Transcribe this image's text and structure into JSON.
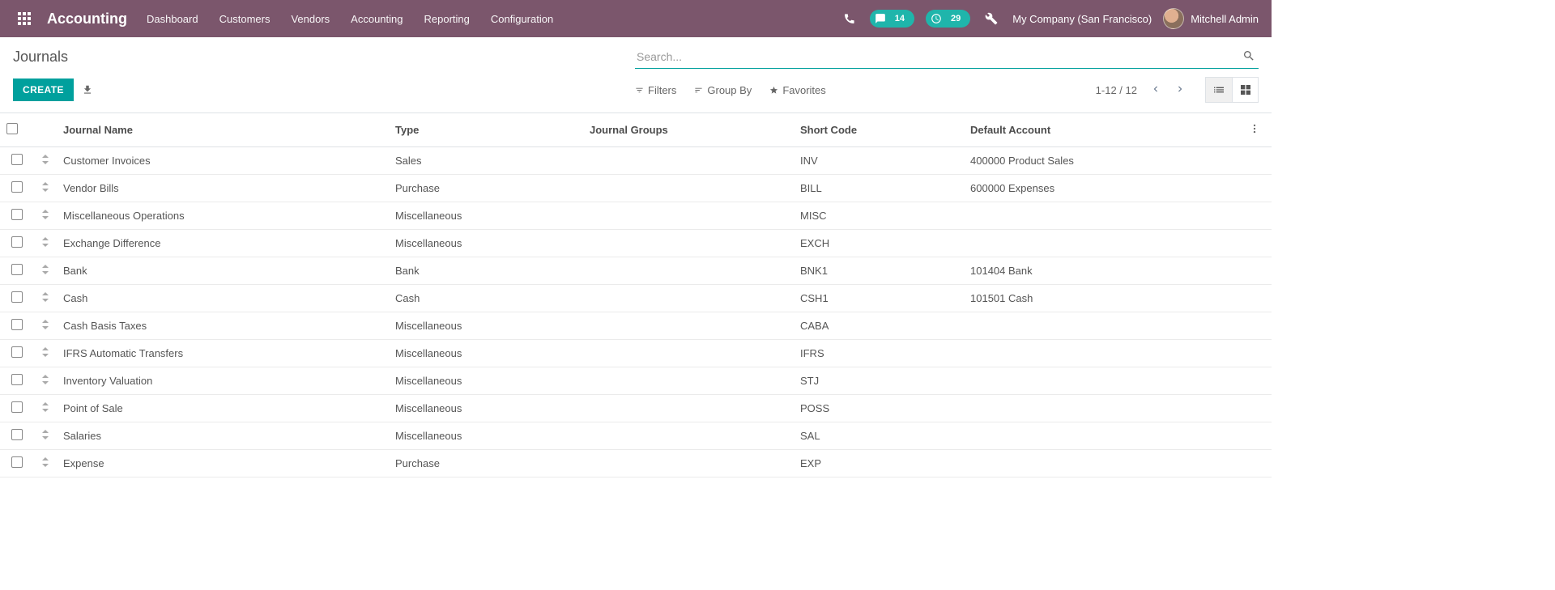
{
  "colors": {
    "brand": "#7b566c",
    "teal": "#00a09d",
    "teal_badge": "#1fb5ab",
    "text": "#4c4c4c",
    "border": "#dee2e6"
  },
  "navbar": {
    "app_name": "Accounting",
    "links": [
      "Dashboard",
      "Customers",
      "Vendors",
      "Accounting",
      "Reporting",
      "Configuration"
    ],
    "messages_count": "14",
    "activities_count": "29",
    "company": "My Company (San Francisco)",
    "user": "Mitchell Admin"
  },
  "header": {
    "title": "Journals",
    "search_placeholder": "Search...",
    "create_label": "Create"
  },
  "filters": {
    "filters_label": "Filters",
    "groupby_label": "Group By",
    "favorites_label": "Favorites"
  },
  "pager": {
    "range": "1-12 / 12"
  },
  "table": {
    "columns": {
      "name": "Journal Name",
      "type": "Type",
      "groups": "Journal Groups",
      "code": "Short Code",
      "default": "Default Account"
    },
    "rows": [
      {
        "name": "Customer Invoices",
        "type": "Sales",
        "groups": "",
        "code": "INV",
        "default": "400000 Product Sales"
      },
      {
        "name": "Vendor Bills",
        "type": "Purchase",
        "groups": "",
        "code": "BILL",
        "default": "600000 Expenses"
      },
      {
        "name": "Miscellaneous Operations",
        "type": "Miscellaneous",
        "groups": "",
        "code": "MISC",
        "default": ""
      },
      {
        "name": "Exchange Difference",
        "type": "Miscellaneous",
        "groups": "",
        "code": "EXCH",
        "default": ""
      },
      {
        "name": "Bank",
        "type": "Bank",
        "groups": "",
        "code": "BNK1",
        "default": "101404 Bank"
      },
      {
        "name": "Cash",
        "type": "Cash",
        "groups": "",
        "code": "CSH1",
        "default": "101501 Cash"
      },
      {
        "name": "Cash Basis Taxes",
        "type": "Miscellaneous",
        "groups": "",
        "code": "CABA",
        "default": ""
      },
      {
        "name": "IFRS Automatic Transfers",
        "type": "Miscellaneous",
        "groups": "",
        "code": "IFRS",
        "default": ""
      },
      {
        "name": "Inventory Valuation",
        "type": "Miscellaneous",
        "groups": "",
        "code": "STJ",
        "default": ""
      },
      {
        "name": "Point of Sale",
        "type": "Miscellaneous",
        "groups": "",
        "code": "POSS",
        "default": ""
      },
      {
        "name": "Salaries",
        "type": "Miscellaneous",
        "groups": "",
        "code": "SAL",
        "default": ""
      },
      {
        "name": "Expense",
        "type": "Purchase",
        "groups": "",
        "code": "EXP",
        "default": ""
      }
    ]
  }
}
